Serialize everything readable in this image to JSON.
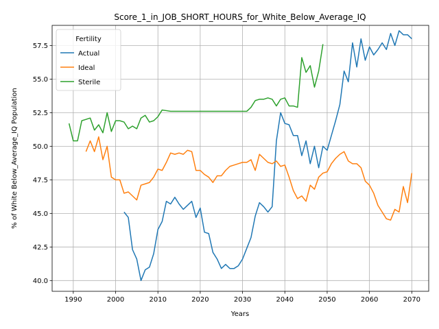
{
  "chart_data": {
    "type": "line",
    "title": "Score_1_in_JOB_SHORT_HOURS_for_White_Below_Average_IQ",
    "xlabel": "Years",
    "ylabel": "% of White Below_Average_IQ Population",
    "xlim": [
      1985,
      2074
    ],
    "ylim": [
      39.2,
      59.0
    ],
    "xticks": [
      1990,
      2000,
      2010,
      2020,
      2030,
      2040,
      2050,
      2060,
      2070
    ],
    "yticks": [
      40.0,
      42.5,
      45.0,
      47.5,
      50.0,
      52.5,
      55.0,
      57.5
    ],
    "ytick_labels": [
      "40.0",
      "42.5",
      "45.0",
      "47.5",
      "50.0",
      "52.5",
      "55.0",
      "57.5"
    ],
    "grid": true,
    "legend": {
      "title": "Fertility",
      "placement": "top-left"
    },
    "series": [
      {
        "name": "Actual",
        "color": "#1f77b4",
        "x": [
          2002,
          2003,
          2004,
          2005,
          2006,
          2007,
          2008,
          2009,
          2010,
          2011,
          2012,
          2013,
          2014,
          2015,
          2016,
          2017,
          2018,
          2019,
          2020,
          2021,
          2022,
          2023,
          2024,
          2025,
          2026,
          2027,
          2028,
          2029,
          2030,
          2031,
          2032,
          2033,
          2034,
          2035,
          2036,
          2037,
          2038,
          2039,
          2040,
          2041,
          2042,
          2043,
          2044,
          2045,
          2046,
          2047,
          2048,
          2049,
          2050,
          2051,
          2052,
          2053,
          2054,
          2055,
          2056,
          2057,
          2058,
          2059,
          2060,
          2061,
          2062,
          2063,
          2064,
          2065,
          2066,
          2067,
          2068,
          2069,
          2070
        ],
        "values": [
          45.1,
          44.7,
          42.3,
          41.6,
          40.0,
          40.8,
          41.0,
          42.0,
          43.8,
          44.4,
          45.9,
          45.7,
          46.2,
          45.7,
          45.3,
          45.6,
          45.9,
          44.7,
          45.4,
          43.6,
          43.5,
          42.1,
          41.6,
          40.9,
          41.2,
          40.9,
          40.9,
          41.1,
          41.6,
          42.4,
          43.2,
          44.8,
          45.8,
          45.5,
          45.1,
          45.5,
          50.4,
          52.5,
          51.7,
          51.6,
          50.8,
          50.8,
          49.3,
          50.4,
          48.7,
          50.0,
          48.4,
          50.0,
          49.7,
          50.8,
          51.9,
          53.1,
          55.6,
          54.8,
          57.7,
          55.9,
          58.0,
          56.4,
          57.4,
          56.8,
          57.2,
          57.7,
          57.2,
          58.4,
          57.5,
          58.6,
          58.3,
          58.3,
          58.0
        ]
      },
      {
        "name": "Ideal",
        "color": "#ff7f0e",
        "x": [
          1993,
          1994,
          1995,
          1996,
          1997,
          1998,
          1999,
          2000,
          2001,
          2002,
          2003,
          2004,
          2005,
          2006,
          2007,
          2008,
          2009,
          2010,
          2011,
          2012,
          2013,
          2014,
          2015,
          2016,
          2017,
          2018,
          2019,
          2020,
          2021,
          2022,
          2023,
          2024,
          2025,
          2026,
          2027,
          2028,
          2029,
          2030,
          2031,
          2032,
          2033,
          2034,
          2035,
          2036,
          2037,
          2038,
          2039,
          2040,
          2041,
          2042,
          2043,
          2044,
          2045,
          2046,
          2047,
          2048,
          2049,
          2050,
          2051,
          2052,
          2053,
          2054,
          2055,
          2056,
          2057,
          2058,
          2059,
          2060,
          2061,
          2062,
          2063,
          2064,
          2065,
          2066,
          2067,
          2068,
          2069,
          2070
        ],
        "values": [
          49.6,
          50.4,
          49.6,
          50.7,
          49.0,
          50.0,
          47.7,
          47.5,
          47.5,
          46.5,
          46.6,
          46.3,
          46.0,
          47.1,
          47.2,
          47.3,
          47.7,
          48.3,
          48.2,
          48.8,
          49.5,
          49.4,
          49.5,
          49.4,
          49.7,
          49.6,
          48.2,
          48.2,
          47.9,
          47.7,
          47.3,
          47.8,
          47.8,
          48.2,
          48.5,
          48.6,
          48.7,
          48.8,
          48.8,
          49.0,
          48.2,
          49.4,
          49.1,
          48.8,
          48.7,
          48.9,
          48.5,
          48.6,
          47.7,
          46.7,
          46.1,
          46.3,
          45.9,
          47.1,
          46.8,
          47.7,
          48.0,
          48.1,
          48.7,
          49.1,
          49.4,
          49.6,
          48.9,
          48.7,
          48.7,
          48.4,
          47.4,
          47.1,
          46.5,
          45.6,
          45.1,
          44.6,
          44.5,
          45.3,
          45.1,
          47.0,
          45.8,
          48.0
        ]
      },
      {
        "name": "Sterile",
        "color": "#2ca02c",
        "x": [
          1989,
          1990,
          1991,
          1992,
          1993,
          1994,
          1995,
          1996,
          1997,
          1998,
          1999,
          2000,
          2001,
          2002,
          2003,
          2004,
          2005,
          2006,
          2007,
          2008,
          2009,
          2010,
          2011,
          2012,
          2013,
          2014,
          2015,
          2016,
          2017,
          2018,
          2019,
          2020,
          2021,
          2022,
          2023,
          2024,
          2025,
          2026,
          2027,
          2028,
          2029,
          2030,
          2031,
          2032,
          2033,
          2034,
          2035,
          2036,
          2037,
          2038,
          2039,
          2040,
          2041,
          2042,
          2043,
          2044,
          2045,
          2046,
          2047,
          2048,
          2049
        ],
        "values": [
          51.7,
          50.4,
          50.4,
          51.9,
          52.0,
          52.1,
          51.2,
          51.6,
          51.0,
          52.5,
          51.1,
          51.9,
          51.9,
          51.8,
          51.3,
          51.5,
          51.3,
          52.1,
          52.3,
          51.8,
          51.9,
          52.2,
          52.7,
          52.65,
          52.6,
          52.6,
          52.6,
          52.6,
          52.6,
          52.6,
          52.6,
          52.6,
          52.6,
          52.6,
          52.6,
          52.6,
          52.6,
          52.6,
          52.6,
          52.6,
          52.6,
          52.6,
          52.6,
          52.9,
          53.4,
          53.5,
          53.5,
          53.6,
          53.5,
          53.0,
          53.5,
          53.6,
          53.0,
          53.0,
          52.9,
          56.6,
          55.5,
          56.0,
          54.4,
          55.6,
          57.6
        ]
      }
    ]
  }
}
